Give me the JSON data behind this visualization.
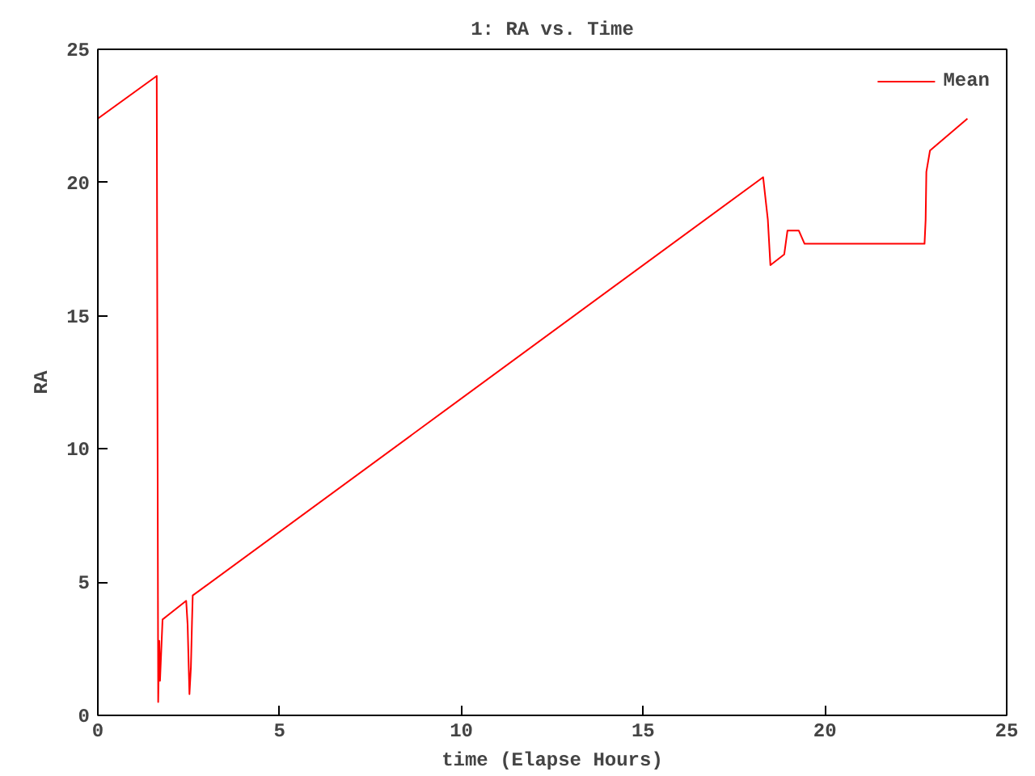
{
  "chart_data": {
    "type": "line",
    "title": "1: RA vs. Time",
    "xlabel": "time (Elapse Hours)",
    "ylabel": "RA",
    "xlim": [
      0,
      25
    ],
    "ylim": [
      0,
      25
    ],
    "xticks": [
      0,
      5,
      10,
      15,
      20,
      25
    ],
    "yticks": [
      0,
      5,
      10,
      15,
      20,
      25
    ],
    "grid": false,
    "legend": "top right",
    "series": [
      {
        "name": "Mean",
        "color": "#ff0000",
        "x": [
          0,
          1.62,
          1.64,
          1.66,
          1.69,
          1.71,
          1.78,
          2.43,
          2.47,
          2.5,
          2.52,
          2.56,
          2.59,
          2.61,
          18.3,
          18.43,
          18.5,
          18.88,
          18.97,
          19.28,
          19.44,
          22.74,
          22.77,
          22.79,
          22.89,
          23.92
        ],
        "values": [
          22.4,
          24.0,
          12.2,
          0.5,
          2.8,
          1.3,
          3.6,
          4.3,
          3.4,
          1.8,
          0.8,
          1.8,
          3.5,
          4.5,
          20.2,
          18.6,
          16.9,
          17.3,
          18.2,
          18.2,
          17.7,
          17.7,
          18.6,
          20.4,
          21.2,
          22.4
        ]
      }
    ]
  }
}
